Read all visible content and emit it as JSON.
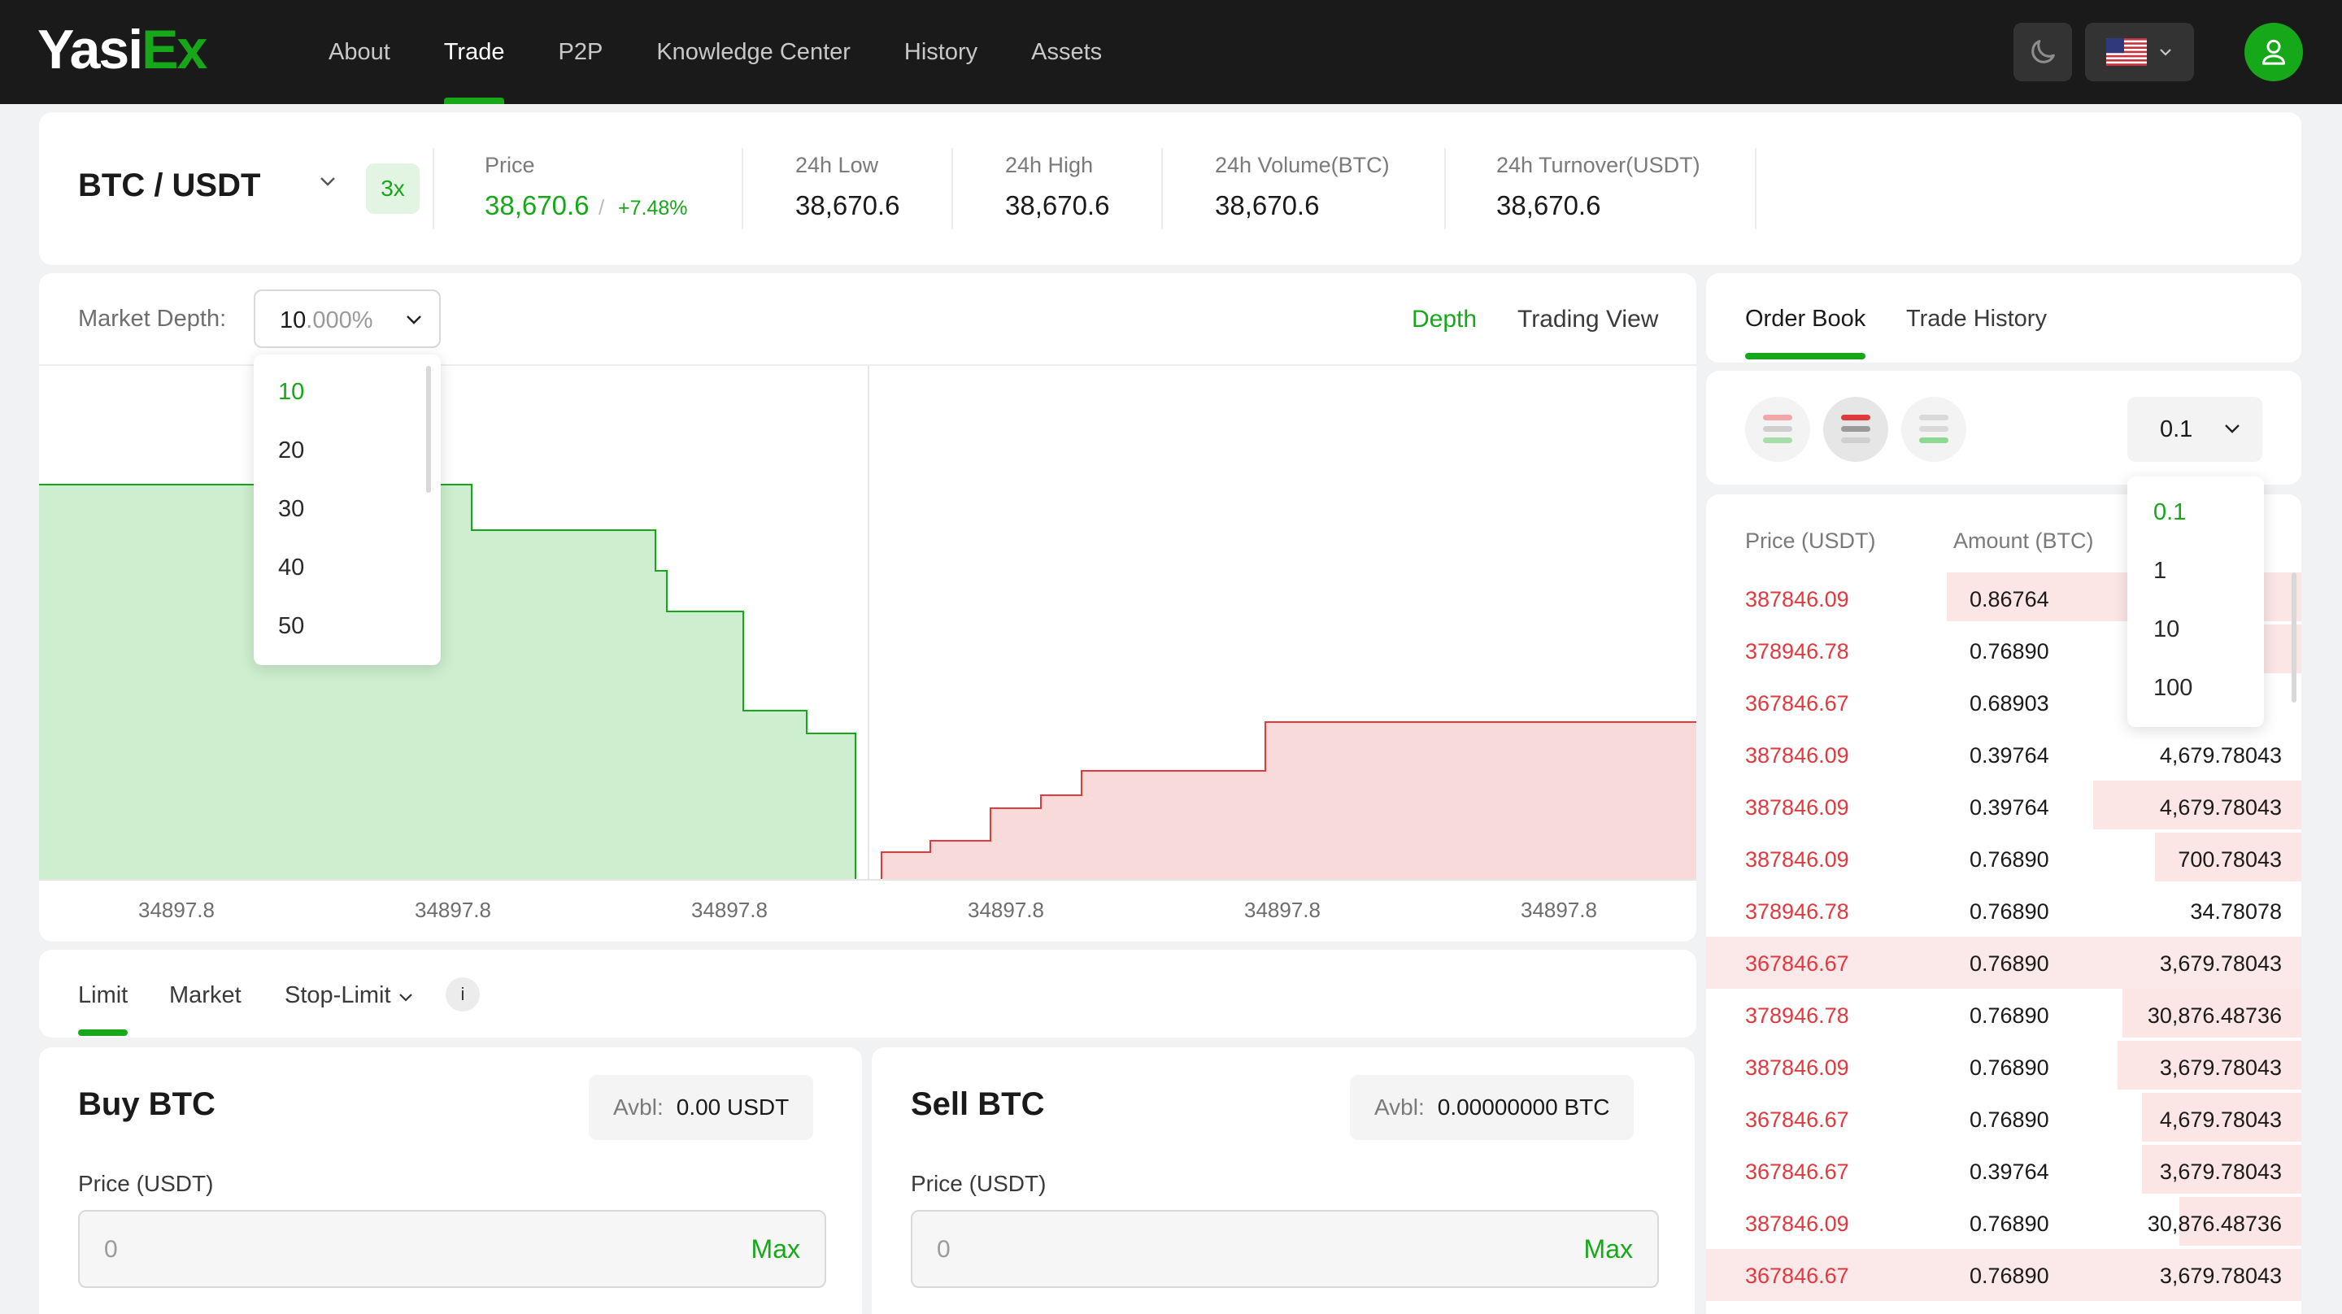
{
  "header": {
    "logo_main": "Yasi",
    "logo_accent": "Ex",
    "nav": [
      {
        "label": "About",
        "active": false
      },
      {
        "label": "Trade",
        "active": true
      },
      {
        "label": "P2P",
        "active": false
      },
      {
        "label": "Knowledge Center",
        "active": false
      },
      {
        "label": "History",
        "active": false
      },
      {
        "label": "Assets",
        "active": false
      }
    ]
  },
  "ticker": {
    "pair": "BTC / USDT",
    "leverage": "3x",
    "price_label": "Price",
    "price": "38,670.6",
    "change": "+7.48%",
    "stats": [
      {
        "label": "24h Low",
        "value": "38,670.6"
      },
      {
        "label": "24h High",
        "value": "38,670.6"
      },
      {
        "label": "24h Volume(BTC)",
        "value": "38,670.6"
      },
      {
        "label": "24h Turnover(USDT)",
        "value": "38,670.6"
      }
    ]
  },
  "chart": {
    "depth_label": "Market Depth:",
    "depth_value": "10",
    "depth_suffix": ".000%",
    "depth_options": [
      "10",
      "20",
      "30",
      "40",
      "50"
    ],
    "depth_selected": "10",
    "views": [
      {
        "label": "Depth",
        "active": true
      },
      {
        "label": "Trading View",
        "active": false
      }
    ],
    "x_ticks": [
      "34897.8",
      "34897.8",
      "34897.8",
      "34897.8",
      "34897.8",
      "34897.8"
    ]
  },
  "order_types": {
    "tabs": [
      {
        "label": "Limit",
        "active": true
      },
      {
        "label": "Market",
        "active": false
      },
      {
        "label": "Stop-Limit",
        "active": false
      }
    ],
    "info_glyph": "i"
  },
  "buy": {
    "title": "Buy BTC",
    "avbl_label": "Avbl:",
    "avbl_value": "0.00 USDT",
    "price_label": "Price (USDT)",
    "price_value": "0",
    "max_label": "Max"
  },
  "sell": {
    "title": "Sell BTC",
    "avbl_label": "Avbl:",
    "avbl_value": "0.00000000 BTC",
    "price_label": "Price (USDT)",
    "price_value": "0",
    "max_label": "Max"
  },
  "orderbook": {
    "tabs": [
      {
        "label": "Order Book",
        "active": true
      },
      {
        "label": "Trade History",
        "active": false
      }
    ],
    "precision": "0.1",
    "precision_options": [
      "0.1",
      "1",
      "10",
      "100"
    ],
    "precision_selected": "0.1",
    "col_price": "Price (USDT)",
    "col_amount": "Amount (BTC)",
    "rows": [
      {
        "price": "387846.09",
        "amount": "0.86764",
        "total": ""
      },
      {
        "price": "378946.78",
        "amount": "0.76890",
        "total": ""
      },
      {
        "price": "367846.67",
        "amount": "0.68903",
        "total": ""
      },
      {
        "price": "387846.09",
        "amount": "0.39764",
        "total": "4,679.78043"
      },
      {
        "price": "387846.09",
        "amount": "0.39764",
        "total": "4,679.78043"
      },
      {
        "price": "387846.09",
        "amount": "0.76890",
        "total": "700.78043"
      },
      {
        "price": "378946.78",
        "amount": "0.76890",
        "total": "34.78078"
      },
      {
        "price": "367846.67",
        "amount": "0.76890",
        "total": "3,679.78043"
      },
      {
        "price": "378946.78",
        "amount": "0.76890",
        "total": "30,876.48736"
      },
      {
        "price": "387846.09",
        "amount": "0.76890",
        "total": "3,679.78043"
      },
      {
        "price": "367846.67",
        "amount": "0.76890",
        "total": "4,679.78043"
      },
      {
        "price": "367846.67",
        "amount": "0.39764",
        "total": "3,679.78043"
      },
      {
        "price": "387846.09",
        "amount": "0.76890",
        "total": "30,876.48736"
      },
      {
        "price": "367846.67",
        "amount": "0.76890",
        "total": "3,679.78043"
      }
    ]
  },
  "colors": {
    "accent": "#17a81a",
    "ask": "#e0393e",
    "bid_fill": "#cdeecf",
    "ask_fill": "#f9dadb",
    "header_bg": "#1a1a1a"
  }
}
